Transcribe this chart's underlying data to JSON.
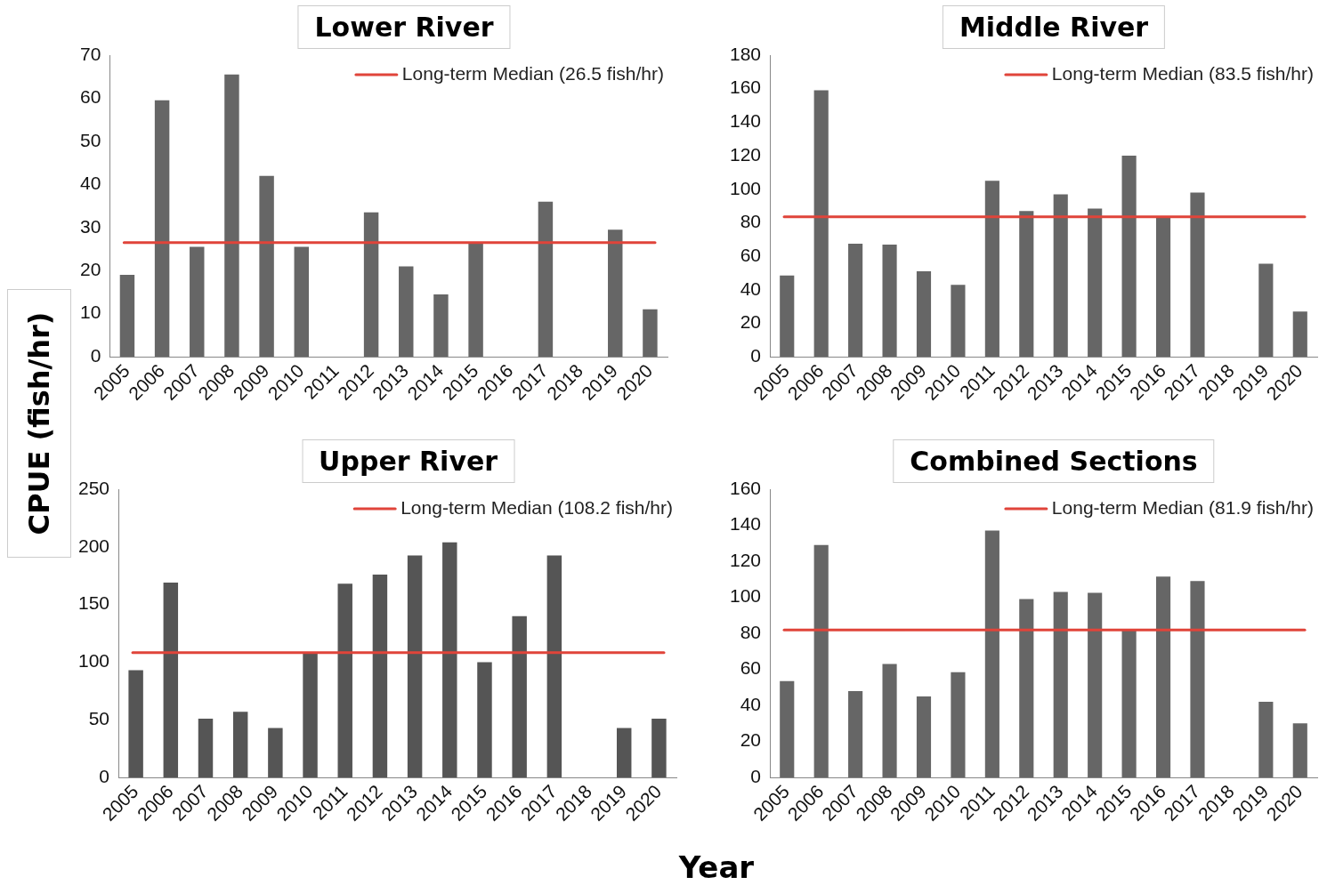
{
  "chart_data": [
    {
      "type": "bar",
      "title": "Lower River",
      "ylabel": "CPUE (fish/hr)",
      "categories": [
        "2005",
        "2006",
        "2007",
        "2008",
        "2009",
        "2010",
        "2011",
        "2012",
        "2013",
        "2014",
        "2015",
        "2016",
        "2017",
        "2018",
        "2019",
        "2020"
      ],
      "values": [
        19,
        59.5,
        25.5,
        65.5,
        42,
        25.5,
        null,
        33.5,
        21,
        14.5,
        26.5,
        null,
        36,
        null,
        29.5,
        11
      ],
      "color": "#666666",
      "ylim": [
        0,
        70
      ],
      "yticks": [
        0,
        10,
        20,
        30,
        40,
        50,
        60,
        70
      ],
      "grid": false,
      "ref_lines": [
        {
          "axis": "y",
          "value": 26.5,
          "label": "Long-term Median (26.5 fish/hr)",
          "color": "#e0443a"
        }
      ]
    },
    {
      "type": "bar",
      "title": "Middle River",
      "categories": [
        "2005",
        "2006",
        "2007",
        "2008",
        "2009",
        "2010",
        "2011",
        "2012",
        "2013",
        "2014",
        "2015",
        "2016",
        "2017",
        "2018",
        "2019",
        "2020"
      ],
      "values": [
        48.5,
        159,
        67.5,
        67,
        51,
        43,
        105,
        87,
        97,
        88.5,
        120,
        83.5,
        98,
        null,
        55.5,
        27
      ],
      "color": "#666666",
      "ylim": [
        0,
        180
      ],
      "yticks": [
        0,
        20,
        40,
        60,
        80,
        100,
        120,
        140,
        160,
        180
      ],
      "grid": false,
      "ref_lines": [
        {
          "axis": "y",
          "value": 83.5,
          "label": "Long-term Median (83.5 fish/hr)",
          "color": "#e0443a"
        }
      ]
    },
    {
      "type": "bar",
      "title": "Upper River",
      "xlabel": "Year",
      "categories": [
        "2005",
        "2006",
        "2007",
        "2008",
        "2009",
        "2010",
        "2011",
        "2012",
        "2013",
        "2014",
        "2015",
        "2016",
        "2017",
        "2018",
        "2019",
        "2020"
      ],
      "values": [
        93,
        169,
        51,
        57,
        43,
        108.5,
        168,
        176,
        192.5,
        204,
        100,
        140,
        192.5,
        null,
        43,
        51
      ],
      "color": "#555555",
      "ylim": [
        0,
        250
      ],
      "yticks": [
        0,
        50,
        100,
        150,
        200,
        250
      ],
      "grid": false,
      "ref_lines": [
        {
          "axis": "y",
          "value": 108.2,
          "label": "Long-term Median (108.2 fish/hr)",
          "color": "#e0443a"
        }
      ]
    },
    {
      "type": "bar",
      "title": "Combined Sections",
      "categories": [
        "2005",
        "2006",
        "2007",
        "2008",
        "2009",
        "2010",
        "2011",
        "2012",
        "2013",
        "2014",
        "2015",
        "2016",
        "2017",
        "2018",
        "2019",
        "2020"
      ],
      "values": [
        53.5,
        129,
        48,
        63,
        45,
        58.5,
        137,
        99,
        103,
        102.5,
        82,
        111.5,
        109,
        null,
        42,
        30
      ],
      "color": "#666666",
      "ylim": [
        0,
        160
      ],
      "yticks": [
        0,
        20,
        40,
        60,
        80,
        100,
        120,
        140,
        160
      ],
      "grid": false,
      "ref_lines": [
        {
          "axis": "y",
          "value": 81.9,
          "label": "Long-term Median (81.9 fish/hr)",
          "color": "#e0443a"
        }
      ]
    }
  ]
}
